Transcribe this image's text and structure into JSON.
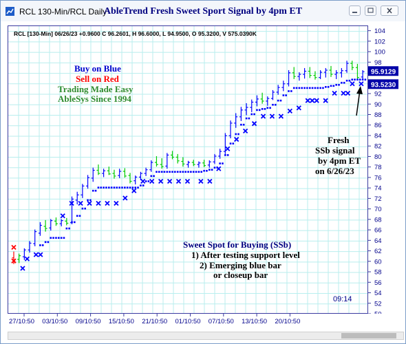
{
  "window": {
    "title": "RCL 130-Min/RCL Daily",
    "chart_title": "AbleTrend Fresh Sweet Sport Signal by 4pm ET"
  },
  "info_line": "RCL [130-Min] 06/26/23 +0.9600 C 96.2601, H 96.6000, L 94.9500, O 95.3200, V 575.0390K",
  "legend_text": {
    "line1": "Buy on Blue",
    "line2": "Sell on Red",
    "line3": "Trading Made Easy",
    "line4": "AbleSys Since 1994"
  },
  "annotation": {
    "line1": "Fresh",
    "line2": "SSb signal",
    "line3": "by 4pm ET",
    "line4": "on 6/26/23"
  },
  "sweet_spot": {
    "title": "Sweet Spot for Buying (SSb)",
    "line1": "1) After testing support level",
    "line2": "2) Emerging blue bar",
    "line3": "or closeup bar"
  },
  "timestamp": "09:14",
  "price_badges": {
    "upper": "95.9129",
    "lower": "93.5230"
  },
  "colors": {
    "blue_bar": "#0000ff",
    "red_bar": "#ff0000",
    "green_bar": "#00cc00",
    "grid": "#b8eeee",
    "axis_text": "#00008b",
    "badge_bg": "#0000a8",
    "badge_text": "#ffffff"
  },
  "chart_data": {
    "type": "bar",
    "ylim": [
      50,
      105
    ],
    "y_ticks": [
      50,
      52,
      54,
      56,
      58,
      60,
      62,
      64,
      66,
      68,
      70,
      72,
      74,
      76,
      78,
      80,
      82,
      84,
      86,
      88,
      90,
      92,
      94,
      96,
      98,
      100,
      102,
      104
    ],
    "x_tick_labels": [
      "27/10:50",
      "03/10:50",
      "09/10:50",
      "15/10:50",
      "21/10:50",
      "01/10:50",
      "07/10:50",
      "13/10:50",
      "20/10:50"
    ],
    "bars": [
      {
        "o": 60.8,
        "h": 62.0,
        "l": 59.6,
        "c": 60.1,
        "col": "red"
      },
      {
        "o": 60.5,
        "h": 61.6,
        "l": 59.8,
        "c": 61.2,
        "col": "green"
      },
      {
        "o": 61.0,
        "h": 62.6,
        "l": 60.4,
        "c": 62.3,
        "col": "blue"
      },
      {
        "o": 62.3,
        "h": 64.0,
        "l": 61.8,
        "c": 63.6,
        "col": "blue"
      },
      {
        "o": 63.5,
        "h": 66.2,
        "l": 63.0,
        "c": 65.8,
        "col": "blue"
      },
      {
        "o": 65.5,
        "h": 67.6,
        "l": 65.0,
        "c": 67.0,
        "col": "blue"
      },
      {
        "o": 66.8,
        "h": 68.0,
        "l": 65.8,
        "c": 66.4,
        "col": "green"
      },
      {
        "o": 66.5,
        "h": 68.2,
        "l": 66.0,
        "c": 67.9,
        "col": "blue"
      },
      {
        "o": 67.8,
        "h": 68.5,
        "l": 66.9,
        "c": 67.3,
        "col": "green"
      },
      {
        "o": 67.3,
        "h": 68.2,
        "l": 66.8,
        "c": 67.9,
        "col": "blue"
      },
      {
        "o": 67.8,
        "h": 68.4,
        "l": 67.0,
        "c": 67.4,
        "col": "green"
      },
      {
        "o": 67.5,
        "h": 72.5,
        "l": 67.2,
        "c": 72.0,
        "col": "blue"
      },
      {
        "o": 71.8,
        "h": 73.4,
        "l": 71.0,
        "c": 72.8,
        "col": "blue"
      },
      {
        "o": 72.8,
        "h": 74.9,
        "l": 72.2,
        "c": 74.5,
        "col": "blue"
      },
      {
        "o": 74.5,
        "h": 76.6,
        "l": 74.0,
        "c": 76.1,
        "col": "blue"
      },
      {
        "o": 76.0,
        "h": 78.0,
        "l": 75.3,
        "c": 77.5,
        "col": "blue"
      },
      {
        "o": 77.5,
        "h": 78.6,
        "l": 76.6,
        "c": 76.9,
        "col": "green"
      },
      {
        "o": 76.9,
        "h": 77.8,
        "l": 76.2,
        "c": 77.4,
        "col": "blue"
      },
      {
        "o": 77.4,
        "h": 78.2,
        "l": 76.6,
        "c": 76.8,
        "col": "green"
      },
      {
        "o": 76.9,
        "h": 77.6,
        "l": 75.9,
        "c": 76.4,
        "col": "green"
      },
      {
        "o": 76.5,
        "h": 77.8,
        "l": 76.0,
        "c": 77.3,
        "col": "blue"
      },
      {
        "o": 77.3,
        "h": 77.9,
        "l": 76.1,
        "c": 76.4,
        "col": "green"
      },
      {
        "o": 76.5,
        "h": 77.0,
        "l": 75.0,
        "c": 75.4,
        "col": "green"
      },
      {
        "o": 75.5,
        "h": 76.5,
        "l": 74.8,
        "c": 76.2,
        "col": "blue"
      },
      {
        "o": 76.2,
        "h": 77.2,
        "l": 75.6,
        "c": 76.9,
        "col": "blue"
      },
      {
        "o": 76.9,
        "h": 78.0,
        "l": 76.4,
        "c": 77.6,
        "col": "blue"
      },
      {
        "o": 77.6,
        "h": 79.4,
        "l": 77.2,
        "c": 79.0,
        "col": "blue"
      },
      {
        "o": 79.0,
        "h": 80.2,
        "l": 78.2,
        "c": 78.6,
        "col": "green"
      },
      {
        "o": 78.6,
        "h": 79.8,
        "l": 77.8,
        "c": 78.2,
        "col": "green"
      },
      {
        "o": 78.3,
        "h": 80.8,
        "l": 77.8,
        "c": 80.4,
        "col": "blue"
      },
      {
        "o": 80.4,
        "h": 81.2,
        "l": 79.6,
        "c": 80.0,
        "col": "green"
      },
      {
        "o": 80.0,
        "h": 80.6,
        "l": 78.8,
        "c": 79.3,
        "col": "green"
      },
      {
        "o": 79.2,
        "h": 80.0,
        "l": 78.2,
        "c": 78.7,
        "col": "green"
      },
      {
        "o": 78.6,
        "h": 79.3,
        "l": 78.0,
        "c": 79.0,
        "col": "blue"
      },
      {
        "o": 79.0,
        "h": 79.5,
        "l": 78.3,
        "c": 78.6,
        "col": "green"
      },
      {
        "o": 78.6,
        "h": 79.2,
        "l": 78.0,
        "c": 78.9,
        "col": "blue"
      },
      {
        "o": 78.9,
        "h": 79.5,
        "l": 78.1,
        "c": 78.4,
        "col": "green"
      },
      {
        "o": 78.5,
        "h": 79.4,
        "l": 78.0,
        "c": 79.1,
        "col": "blue"
      },
      {
        "o": 79.1,
        "h": 80.6,
        "l": 78.7,
        "c": 80.2,
        "col": "blue"
      },
      {
        "o": 80.2,
        "h": 81.6,
        "l": 79.7,
        "c": 81.1,
        "col": "blue"
      },
      {
        "o": 81.1,
        "h": 84.6,
        "l": 80.6,
        "c": 84.1,
        "col": "blue"
      },
      {
        "o": 84.1,
        "h": 87.0,
        "l": 83.6,
        "c": 86.5,
        "col": "blue"
      },
      {
        "o": 86.5,
        "h": 88.4,
        "l": 85.6,
        "c": 87.7,
        "col": "blue"
      },
      {
        "o": 87.7,
        "h": 89.6,
        "l": 86.9,
        "c": 89.0,
        "col": "blue"
      },
      {
        "o": 89.0,
        "h": 90.3,
        "l": 88.0,
        "c": 89.5,
        "col": "blue"
      },
      {
        "o": 89.5,
        "h": 91.0,
        "l": 88.6,
        "c": 90.5,
        "col": "blue"
      },
      {
        "o": 90.5,
        "h": 91.8,
        "l": 89.7,
        "c": 91.1,
        "col": "blue"
      },
      {
        "o": 91.1,
        "h": 92.3,
        "l": 90.2,
        "c": 90.7,
        "col": "green"
      },
      {
        "o": 90.7,
        "h": 91.6,
        "l": 89.8,
        "c": 91.2,
        "col": "blue"
      },
      {
        "o": 91.2,
        "h": 92.8,
        "l": 90.9,
        "c": 92.4,
        "col": "blue"
      },
      {
        "o": 92.4,
        "h": 93.8,
        "l": 91.9,
        "c": 93.3,
        "col": "blue"
      },
      {
        "o": 93.3,
        "h": 94.6,
        "l": 92.6,
        "c": 94.0,
        "col": "blue"
      },
      {
        "o": 94.0,
        "h": 96.6,
        "l": 93.5,
        "c": 96.1,
        "col": "blue"
      },
      {
        "o": 96.1,
        "h": 97.2,
        "l": 94.9,
        "c": 95.4,
        "col": "green"
      },
      {
        "o": 95.4,
        "h": 96.2,
        "l": 94.6,
        "c": 95.8,
        "col": "blue"
      },
      {
        "o": 95.8,
        "h": 97.0,
        "l": 95.0,
        "c": 96.4,
        "col": "blue"
      },
      {
        "o": 96.4,
        "h": 97.2,
        "l": 95.1,
        "c": 95.6,
        "col": "green"
      },
      {
        "o": 95.6,
        "h": 96.4,
        "l": 94.8,
        "c": 95.2,
        "col": "green"
      },
      {
        "o": 95.2,
        "h": 96.6,
        "l": 94.9,
        "c": 96.2,
        "col": "blue"
      },
      {
        "o": 96.2,
        "h": 97.0,
        "l": 95.2,
        "c": 96.6,
        "col": "blue"
      },
      {
        "o": 96.6,
        "h": 97.4,
        "l": 95.3,
        "c": 95.8,
        "col": "green"
      },
      {
        "o": 95.8,
        "h": 96.6,
        "l": 94.9,
        "c": 96.1,
        "col": "blue"
      },
      {
        "o": 96.1,
        "h": 97.0,
        "l": 95.2,
        "c": 96.5,
        "col": "blue"
      },
      {
        "o": 96.5,
        "h": 98.4,
        "l": 96.1,
        "c": 97.9,
        "col": "blue"
      },
      {
        "o": 97.9,
        "h": 98.4,
        "l": 96.6,
        "c": 97.1,
        "col": "green"
      },
      {
        "o": 97.1,
        "h": 97.8,
        "l": 94.8,
        "c": 95.2,
        "col": "green"
      },
      {
        "o": 95.3,
        "h": 96.6,
        "l": 94.9,
        "c": 96.3,
        "col": "blue"
      }
    ],
    "stop_dots": [
      {
        "i": 5,
        "y": 63.2
      },
      {
        "i": 6,
        "y": 63.8
      },
      {
        "i": 7,
        "y": 64.6
      },
      {
        "i": 8,
        "y": 64.6
      },
      {
        "i": 9,
        "y": 64.6
      },
      {
        "i": 10,
        "y": 66.4
      },
      {
        "i": 11,
        "y": 67.6
      },
      {
        "i": 12,
        "y": 68.8
      },
      {
        "i": 13,
        "y": 70.2
      },
      {
        "i": 14,
        "y": 71.8
      },
      {
        "i": 15,
        "y": 73.6
      },
      {
        "i": 16,
        "y": 74.2
      },
      {
        "i": 17,
        "y": 74.2
      },
      {
        "i": 18,
        "y": 74.2
      },
      {
        "i": 19,
        "y": 74.2
      },
      {
        "i": 20,
        "y": 74.2
      },
      {
        "i": 21,
        "y": 74.2
      },
      {
        "i": 22,
        "y": 74.2
      },
      {
        "i": 23,
        "y": 74.2
      },
      {
        "i": 24,
        "y": 74.6
      },
      {
        "i": 25,
        "y": 75.4
      },
      {
        "i": 26,
        "y": 76.4
      },
      {
        "i": 27,
        "y": 77.2
      },
      {
        "i": 28,
        "y": 77.2
      },
      {
        "i": 29,
        "y": 77.2
      },
      {
        "i": 30,
        "y": 77.2
      },
      {
        "i": 31,
        "y": 77.2
      },
      {
        "i": 32,
        "y": 77.2
      },
      {
        "i": 33,
        "y": 77.2
      },
      {
        "i": 34,
        "y": 77.2
      },
      {
        "i": 35,
        "y": 77.2
      },
      {
        "i": 36,
        "y": 77.4
      },
      {
        "i": 37,
        "y": 77.6
      },
      {
        "i": 38,
        "y": 78.0
      },
      {
        "i": 39,
        "y": 78.8
      },
      {
        "i": 40,
        "y": 80.4
      },
      {
        "i": 41,
        "y": 82.6
      },
      {
        "i": 42,
        "y": 84.4
      },
      {
        "i": 43,
        "y": 86.2
      },
      {
        "i": 44,
        "y": 87.4
      },
      {
        "i": 45,
        "y": 88.2
      },
      {
        "i": 46,
        "y": 89.0
      },
      {
        "i": 47,
        "y": 89.2
      },
      {
        "i": 48,
        "y": 89.4
      },
      {
        "i": 49,
        "y": 90.0
      },
      {
        "i": 50,
        "y": 90.8
      },
      {
        "i": 51,
        "y": 91.8
      },
      {
        "i": 52,
        "y": 92.6
      },
      {
        "i": 53,
        "y": 93.2
      },
      {
        "i": 54,
        "y": 93.2
      },
      {
        "i": 55,
        "y": 93.2
      },
      {
        "i": 56,
        "y": 93.2
      },
      {
        "i": 57,
        "y": 93.2
      },
      {
        "i": 58,
        "y": 93.2
      },
      {
        "i": 59,
        "y": 93.4
      },
      {
        "i": 60,
        "y": 93.6
      },
      {
        "i": 61,
        "y": 93.8
      },
      {
        "i": 62,
        "y": 94.2
      },
      {
        "i": 63,
        "y": 94.6
      },
      {
        "i": 64,
        "y": 94.8
      },
      {
        "i": 65,
        "y": 94.8
      },
      {
        "i": 66,
        "y": 94.8
      }
    ],
    "x_marks": [
      {
        "i": 0,
        "y": 62.8,
        "col": "red"
      },
      {
        "i": 0,
        "y": 60.2,
        "col": "red"
      },
      {
        "i": 2,
        "y": 58.8,
        "col": "blue"
      },
      {
        "i": 3,
        "y": 60.6,
        "col": "blue"
      },
      {
        "i": 5,
        "y": 61.4,
        "col": "blue"
      },
      {
        "i": 6,
        "y": 61.4,
        "col": "blue"
      },
      {
        "i": 11,
        "y": 68.8,
        "col": "blue"
      },
      {
        "i": 13,
        "y": 71.2,
        "col": "blue"
      },
      {
        "i": 15,
        "y": 71.2,
        "col": "blue"
      },
      {
        "i": 17,
        "y": 71.2,
        "col": "blue"
      },
      {
        "i": 19,
        "y": 71.2,
        "col": "blue"
      },
      {
        "i": 21,
        "y": 71.2,
        "col": "blue"
      },
      {
        "i": 23,
        "y": 71.2,
        "col": "blue"
      },
      {
        "i": 25,
        "y": 72.2,
        "col": "blue"
      },
      {
        "i": 27,
        "y": 73.6,
        "col": "blue"
      },
      {
        "i": 29,
        "y": 75.4,
        "col": "blue"
      },
      {
        "i": 31,
        "y": 75.4,
        "col": "blue"
      },
      {
        "i": 33,
        "y": 75.4,
        "col": "blue"
      },
      {
        "i": 35,
        "y": 75.4,
        "col": "blue"
      },
      {
        "i": 37,
        "y": 75.4,
        "col": "blue"
      },
      {
        "i": 39,
        "y": 75.4,
        "col": "blue"
      },
      {
        "i": 42,
        "y": 75.4,
        "col": "blue"
      },
      {
        "i": 44,
        "y": 75.4,
        "col": "blue"
      },
      {
        "i": 46,
        "y": 77.8,
        "col": "blue"
      },
      {
        "i": 48,
        "y": 81.6,
        "col": "blue"
      },
      {
        "i": 50,
        "y": 83.4,
        "col": "blue"
      },
      {
        "i": 52,
        "y": 85.0,
        "col": "blue"
      },
      {
        "i": 54,
        "y": 86.4,
        "col": "blue"
      },
      {
        "i": 56,
        "y": 87.8,
        "col": "blue"
      },
      {
        "i": 58,
        "y": 87.8,
        "col": "blue"
      },
      {
        "i": 60,
        "y": 87.8,
        "col": "blue"
      },
      {
        "i": 62,
        "y": 88.8,
        "col": "blue"
      },
      {
        "i": 64,
        "y": 89.4,
        "col": "blue"
      },
      {
        "i": 66,
        "y": 90.8,
        "col": "blue"
      },
      {
        "i": 67,
        "y": 90.8,
        "col": "blue"
      },
      {
        "i": 68,
        "y": 90.8,
        "col": "blue"
      },
      {
        "i": 70,
        "y": 90.8,
        "col": "blue"
      },
      {
        "i": 72,
        "y": 92.2,
        "col": "blue"
      },
      {
        "i": 74,
        "y": 92.2,
        "col": "blue"
      },
      {
        "i": 75,
        "y": 92.2,
        "col": "blue"
      },
      {
        "i": 76,
        "y": 94.0,
        "col": "blue"
      },
      {
        "i": 78,
        "y": 94.0,
        "col": "blue"
      },
      {
        "i": 80,
        "y": 94.0,
        "col": "blue"
      }
    ]
  }
}
